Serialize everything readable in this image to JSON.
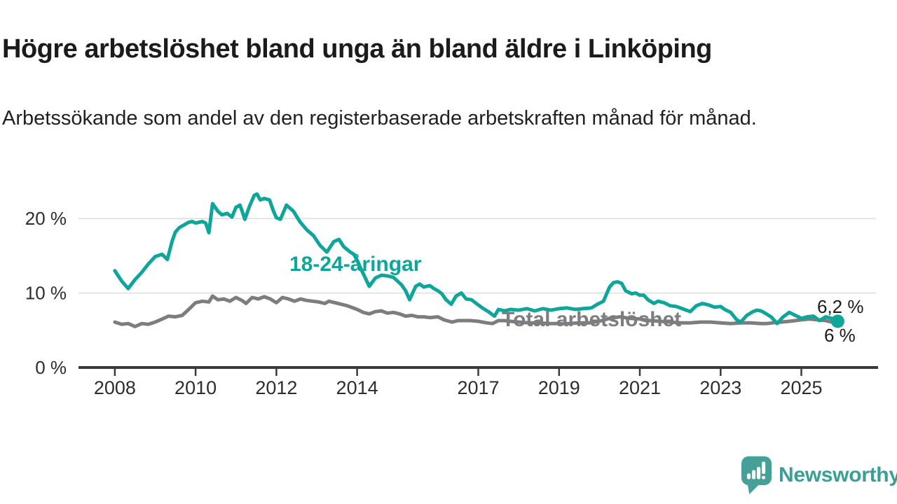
{
  "header": {
    "title": "Högre arbetslöshet bland unga än bland äldre i Linköping",
    "subtitle": "Arbetssökande som andel av den registerbaserade arbetskraften månad för månad."
  },
  "chart_data": {
    "type": "line",
    "title": "Högre arbetslöshet bland unga än bland äldre i Linköping",
    "xlabel": "",
    "ylabel": "",
    "unit": "%",
    "grid": "horizontal",
    "xlim": [
      2007.1,
      2026.9
    ],
    "ylim": [
      0,
      25
    ],
    "colors": {
      "young": "#0ea59a",
      "total": "#7d7d80",
      "axis": "#3a3a3e",
      "grid": "#dcdcdc"
    },
    "x_ticks": [
      {
        "label": "2008",
        "year": 2008
      },
      {
        "label": "2010",
        "year": 2010
      },
      {
        "label": "2012",
        "year": 2012
      },
      {
        "label": "2014",
        "year": 2014
      },
      {
        "label": "2017",
        "year": 2017
      },
      {
        "label": "2019",
        "year": 2019
      },
      {
        "label": "2021",
        "year": 2021
      },
      {
        "label": "2023",
        "year": 2023
      },
      {
        "label": "2025",
        "year": 2025
      }
    ],
    "y_ticks": [
      {
        "label": "0 %",
        "value": 0
      },
      {
        "label": "10 %",
        "value": 10
      },
      {
        "label": "20 %",
        "value": 20
      }
    ],
    "series": [
      {
        "name": "18-24-åringar",
        "color": "#0ea59a",
        "end_label": "6,2 %",
        "end_dot": true,
        "points": [
          [
            2008.0,
            13.0
          ],
          [
            2008.17,
            11.6
          ],
          [
            2008.33,
            10.6
          ],
          [
            2008.5,
            11.8
          ],
          [
            2008.67,
            12.8
          ],
          [
            2008.83,
            13.9
          ],
          [
            2009.0,
            14.9
          ],
          [
            2009.17,
            15.2
          ],
          [
            2009.3,
            14.5
          ],
          [
            2009.42,
            17.0
          ],
          [
            2009.5,
            18.2
          ],
          [
            2009.6,
            18.8
          ],
          [
            2009.7,
            19.1
          ],
          [
            2009.83,
            19.5
          ],
          [
            2009.92,
            19.6
          ],
          [
            2010.0,
            19.4
          ],
          [
            2010.17,
            19.6
          ],
          [
            2010.25,
            19.4
          ],
          [
            2010.33,
            18.1
          ],
          [
            2010.42,
            22.0
          ],
          [
            2010.55,
            21.0
          ],
          [
            2010.65,
            20.5
          ],
          [
            2010.78,
            20.7
          ],
          [
            2010.9,
            20.2
          ],
          [
            2011.0,
            21.5
          ],
          [
            2011.1,
            21.8
          ],
          [
            2011.22,
            19.9
          ],
          [
            2011.33,
            21.6
          ],
          [
            2011.45,
            23.1
          ],
          [
            2011.52,
            23.3
          ],
          [
            2011.6,
            22.5
          ],
          [
            2011.7,
            22.7
          ],
          [
            2011.83,
            22.5
          ],
          [
            2011.92,
            21.1
          ],
          [
            2012.0,
            20.1
          ],
          [
            2012.1,
            19.9
          ],
          [
            2012.25,
            21.8
          ],
          [
            2012.42,
            21.0
          ],
          [
            2012.58,
            19.6
          ],
          [
            2012.75,
            18.5
          ],
          [
            2012.92,
            17.7
          ],
          [
            2013.08,
            16.4
          ],
          [
            2013.25,
            15.5
          ],
          [
            2013.42,
            16.9
          ],
          [
            2013.55,
            17.2
          ],
          [
            2013.67,
            16.2
          ],
          [
            2013.83,
            15.5
          ],
          [
            2013.92,
            15.2
          ],
          [
            2014.0,
            14.4
          ],
          [
            2014.08,
            13.4
          ],
          [
            2014.17,
            12.4
          ],
          [
            2014.3,
            10.9
          ],
          [
            2014.45,
            12.0
          ],
          [
            2014.6,
            12.4
          ],
          [
            2014.75,
            12.3
          ],
          [
            2014.9,
            12.1
          ],
          [
            2015.0,
            11.6
          ],
          [
            2015.1,
            11.1
          ],
          [
            2015.2,
            10.3
          ],
          [
            2015.3,
            9.1
          ],
          [
            2015.45,
            10.9
          ],
          [
            2015.55,
            11.2
          ],
          [
            2015.65,
            10.8
          ],
          [
            2015.8,
            11.0
          ],
          [
            2015.9,
            10.6
          ],
          [
            2016.0,
            10.3
          ],
          [
            2016.1,
            9.9
          ],
          [
            2016.2,
            9.1
          ],
          [
            2016.33,
            8.5
          ],
          [
            2016.45,
            9.6
          ],
          [
            2016.58,
            10.0
          ],
          [
            2016.7,
            9.2
          ],
          [
            2016.83,
            9.1
          ],
          [
            2016.95,
            8.6
          ],
          [
            2017.1,
            8.0
          ],
          [
            2017.25,
            7.5
          ],
          [
            2017.4,
            6.9
          ],
          [
            2017.5,
            7.8
          ],
          [
            2017.65,
            7.6
          ],
          [
            2017.8,
            7.8
          ],
          [
            2018.0,
            7.7
          ],
          [
            2018.2,
            7.9
          ],
          [
            2018.4,
            7.6
          ],
          [
            2018.6,
            7.9
          ],
          [
            2018.8,
            7.7
          ],
          [
            2019.0,
            7.9
          ],
          [
            2019.2,
            8.0
          ],
          [
            2019.4,
            7.8
          ],
          [
            2019.6,
            7.9
          ],
          [
            2019.8,
            8.0
          ],
          [
            2019.95,
            8.5
          ],
          [
            2020.1,
            8.9
          ],
          [
            2020.25,
            10.8
          ],
          [
            2020.35,
            11.4
          ],
          [
            2020.45,
            11.5
          ],
          [
            2020.55,
            11.3
          ],
          [
            2020.65,
            10.3
          ],
          [
            2020.8,
            9.9
          ],
          [
            2020.9,
            10.0
          ],
          [
            2021.0,
            9.7
          ],
          [
            2021.1,
            9.7
          ],
          [
            2021.2,
            9.1
          ],
          [
            2021.35,
            8.6
          ],
          [
            2021.45,
            8.9
          ],
          [
            2021.6,
            8.7
          ],
          [
            2021.75,
            8.3
          ],
          [
            2021.9,
            8.2
          ],
          [
            2022.1,
            7.8
          ],
          [
            2022.25,
            7.5
          ],
          [
            2022.4,
            8.3
          ],
          [
            2022.55,
            8.6
          ],
          [
            2022.7,
            8.4
          ],
          [
            2022.85,
            8.1
          ],
          [
            2023.0,
            8.2
          ],
          [
            2023.1,
            7.8
          ],
          [
            2023.25,
            7.4
          ],
          [
            2023.4,
            6.4
          ],
          [
            2023.5,
            6.1
          ],
          [
            2023.65,
            7.0
          ],
          [
            2023.8,
            7.5
          ],
          [
            2023.9,
            7.7
          ],
          [
            2024.0,
            7.6
          ],
          [
            2024.1,
            7.3
          ],
          [
            2024.25,
            6.8
          ],
          [
            2024.4,
            5.9
          ],
          [
            2024.55,
            6.8
          ],
          [
            2024.7,
            7.4
          ],
          [
            2024.85,
            7.0
          ],
          [
            2025.0,
            6.6
          ],
          [
            2025.15,
            6.8
          ],
          [
            2025.3,
            6.9
          ],
          [
            2025.45,
            6.3
          ],
          [
            2025.6,
            6.8
          ],
          [
            2025.75,
            6.6
          ],
          [
            2025.9,
            6.2
          ]
        ]
      },
      {
        "name": "Total arbetslöshet",
        "color": "#7d7d80",
        "end_label": "6 %",
        "end_dot": false,
        "points": [
          [
            2008.0,
            6.1
          ],
          [
            2008.17,
            5.8
          ],
          [
            2008.33,
            5.9
          ],
          [
            2008.5,
            5.5
          ],
          [
            2008.67,
            5.9
          ],
          [
            2008.83,
            5.8
          ],
          [
            2009.0,
            6.1
          ],
          [
            2009.17,
            6.5
          ],
          [
            2009.33,
            6.9
          ],
          [
            2009.5,
            6.8
          ],
          [
            2009.67,
            7.0
          ],
          [
            2009.83,
            7.8
          ],
          [
            2010.0,
            8.7
          ],
          [
            2010.17,
            8.9
          ],
          [
            2010.33,
            8.8
          ],
          [
            2010.42,
            9.6
          ],
          [
            2010.55,
            9.1
          ],
          [
            2010.7,
            9.2
          ],
          [
            2010.85,
            8.9
          ],
          [
            2011.0,
            9.4
          ],
          [
            2011.15,
            9.0
          ],
          [
            2011.25,
            8.6
          ],
          [
            2011.4,
            9.4
          ],
          [
            2011.55,
            9.2
          ],
          [
            2011.7,
            9.5
          ],
          [
            2011.85,
            9.2
          ],
          [
            2012.0,
            8.7
          ],
          [
            2012.15,
            9.4
          ],
          [
            2012.3,
            9.2
          ],
          [
            2012.45,
            8.9
          ],
          [
            2012.6,
            9.2
          ],
          [
            2012.75,
            9.0
          ],
          [
            2012.9,
            8.9
          ],
          [
            2013.05,
            8.8
          ],
          [
            2013.2,
            8.6
          ],
          [
            2013.3,
            8.9
          ],
          [
            2013.45,
            8.7
          ],
          [
            2013.6,
            8.5
          ],
          [
            2013.75,
            8.3
          ],
          [
            2013.9,
            8.0
          ],
          [
            2014.0,
            7.8
          ],
          [
            2014.15,
            7.4
          ],
          [
            2014.3,
            7.2
          ],
          [
            2014.45,
            7.5
          ],
          [
            2014.6,
            7.6
          ],
          [
            2014.75,
            7.3
          ],
          [
            2014.9,
            7.4
          ],
          [
            2015.05,
            7.2
          ],
          [
            2015.2,
            6.9
          ],
          [
            2015.35,
            7.0
          ],
          [
            2015.5,
            6.8
          ],
          [
            2015.65,
            6.8
          ],
          [
            2015.8,
            6.7
          ],
          [
            2016.0,
            6.8
          ],
          [
            2016.15,
            6.4
          ],
          [
            2016.35,
            6.1
          ],
          [
            2016.5,
            6.3
          ],
          [
            2016.65,
            6.3
          ],
          [
            2016.8,
            6.3
          ],
          [
            2017.0,
            6.2
          ],
          [
            2017.2,
            6.0
          ],
          [
            2017.35,
            5.9
          ],
          [
            2017.5,
            6.3
          ],
          [
            2017.65,
            6.3
          ],
          [
            2017.8,
            6.2
          ],
          [
            2018.0,
            6.1
          ],
          [
            2018.25,
            6.0
          ],
          [
            2018.5,
            6.0
          ],
          [
            2018.75,
            5.9
          ],
          [
            2019.0,
            5.9
          ],
          [
            2019.25,
            5.9
          ],
          [
            2019.5,
            6.0
          ],
          [
            2019.75,
            6.0
          ],
          [
            2020.0,
            6.2
          ],
          [
            2020.25,
            6.6
          ],
          [
            2020.5,
            6.8
          ],
          [
            2020.75,
            6.6
          ],
          [
            2021.0,
            6.5
          ],
          [
            2021.25,
            6.3
          ],
          [
            2021.5,
            6.2
          ],
          [
            2021.75,
            6.1
          ],
          [
            2022.0,
            6.0
          ],
          [
            2022.25,
            6.0
          ],
          [
            2022.5,
            6.1
          ],
          [
            2022.75,
            6.1
          ],
          [
            2023.0,
            6.0
          ],
          [
            2023.25,
            5.9
          ],
          [
            2023.5,
            6.0
          ],
          [
            2023.75,
            6.0
          ],
          [
            2024.0,
            5.9
          ],
          [
            2024.15,
            5.9
          ],
          [
            2024.3,
            6.0
          ],
          [
            2024.5,
            6.1
          ],
          [
            2024.7,
            6.2
          ],
          [
            2024.85,
            6.3
          ],
          [
            2025.0,
            6.4
          ],
          [
            2025.2,
            6.5
          ],
          [
            2025.4,
            6.4
          ],
          [
            2025.6,
            6.3
          ],
          [
            2025.75,
            6.1
          ],
          [
            2025.9,
            6.0
          ]
        ]
      }
    ]
  },
  "logo": {
    "wordmark": "Newsworthy"
  }
}
